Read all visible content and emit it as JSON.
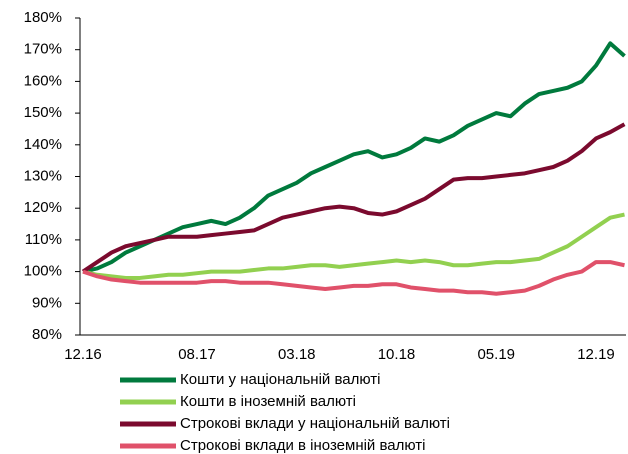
{
  "chart_data": {
    "type": "line",
    "categories": [
      "12.16",
      null,
      null,
      null,
      null,
      null,
      null,
      null,
      "08.17",
      null,
      null,
      null,
      null,
      null,
      null,
      "03.18",
      null,
      null,
      null,
      null,
      null,
      null,
      "10.18",
      null,
      null,
      null,
      null,
      null,
      null,
      "05.19",
      null,
      null,
      null,
      null,
      null,
      null,
      "12.19",
      null,
      null
    ],
    "series": [
      {
        "name": "Кошти у національній валюті",
        "color": "#007a3d",
        "values": [
          100,
          101,
          103,
          106,
          108,
          110,
          112,
          114,
          115,
          116,
          115,
          117,
          120,
          124,
          126,
          128,
          131,
          133,
          135,
          137,
          138,
          136,
          137,
          139,
          142,
          141,
          143,
          146,
          148,
          150,
          149,
          153,
          156,
          157,
          158,
          160,
          165,
          172,
          168
        ]
      },
      {
        "name": "Кошти в іноземній валюті",
        "color": "#92d050",
        "values": [
          100,
          99,
          98.5,
          98,
          98,
          98.5,
          99,
          99,
          99.5,
          100,
          100,
          100,
          100.5,
          101,
          101,
          101.5,
          102,
          102,
          101.5,
          102,
          102.5,
          103,
          103.5,
          103,
          103.5,
          103,
          102,
          102,
          102.5,
          103,
          103,
          103.5,
          104,
          106,
          108,
          111,
          114,
          117,
          118
        ]
      },
      {
        "name": "Строкові вклади у національній валюті",
        "color": "#7b0a2e",
        "values": [
          100,
          103,
          106,
          108,
          109,
          110,
          111,
          111,
          111,
          111.5,
          112,
          112.5,
          113,
          115,
          117,
          118,
          119,
          120,
          120.5,
          120,
          118.5,
          118,
          119,
          121,
          123,
          126,
          129,
          129.5,
          129.5,
          130,
          130.5,
          131,
          132,
          133,
          135,
          138,
          142,
          144,
          146.5
        ]
      },
      {
        "name": "Строкові вклади в іноземній валюті",
        "color": "#e0516a",
        "values": [
          100,
          98.5,
          97.5,
          97,
          96.5,
          96.5,
          96.5,
          96.5,
          96.5,
          97,
          97,
          96.5,
          96.5,
          96.5,
          96,
          95.5,
          95,
          94.5,
          95,
          95.5,
          95.5,
          96,
          96,
          95,
          94.5,
          94,
          94,
          93.5,
          93.5,
          93,
          93.5,
          94,
          95.5,
          97.5,
          99,
          100,
          103,
          103,
          102
        ]
      }
    ],
    "ylim": [
      80,
      180
    ],
    "yticks": [
      {
        "value": 80,
        "label": "80%"
      },
      {
        "value": 90,
        "label": "90%"
      },
      {
        "value": 100,
        "label": "100%"
      },
      {
        "value": 110,
        "label": "110%"
      },
      {
        "value": 120,
        "label": "120%"
      },
      {
        "value": 130,
        "label": "130%"
      },
      {
        "value": 140,
        "label": "140%"
      },
      {
        "value": 150,
        "label": "150%"
      },
      {
        "value": 160,
        "label": "160%"
      },
      {
        "value": 170,
        "label": "170%"
      },
      {
        "value": 180,
        "label": "180%"
      }
    ],
    "legend": "bottom"
  }
}
